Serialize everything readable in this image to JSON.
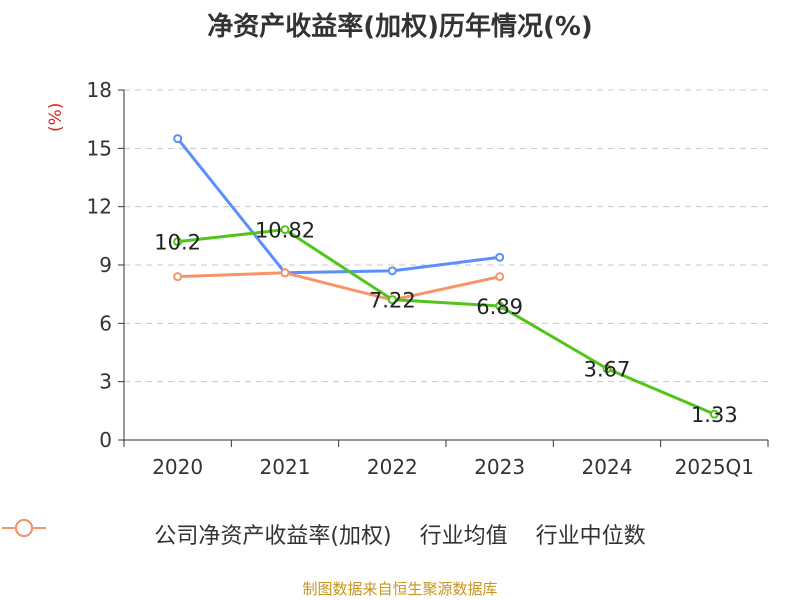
{
  "title": "净资产收益率(加权)历年情况(%)",
  "unit_label": "(%)",
  "source": "制图数据来自恒生聚源数据库",
  "chart_data": {
    "type": "line",
    "title": "净资产收益率(加权)历年情况(%)",
    "categories": [
      "2020",
      "2021",
      "2022",
      "2023",
      "2024",
      "2025Q1"
    ],
    "ylim": [
      0,
      18
    ],
    "yticks": [
      "0",
      "3",
      "6",
      "9",
      "12",
      "15",
      "18"
    ],
    "grid": true,
    "legend_position": "bottom",
    "series": [
      {
        "name": "公司净资产收益率(加权)",
        "color": "#52c41a",
        "values": [
          10.2,
          10.82,
          7.22,
          6.89,
          3.67,
          1.33
        ],
        "labels": [
          "10.2",
          "10.82",
          "7.22",
          "6.89",
          "3.67",
          "1.33"
        ]
      },
      {
        "name": "行业均值",
        "color": "#5b8ff9",
        "values": [
          15.5,
          8.6,
          8.7,
          9.4,
          null,
          null
        ]
      },
      {
        "name": "行业中位数",
        "color": "#f6956a",
        "values": [
          8.4,
          8.6,
          7.2,
          8.4,
          null,
          null
        ]
      }
    ]
  }
}
